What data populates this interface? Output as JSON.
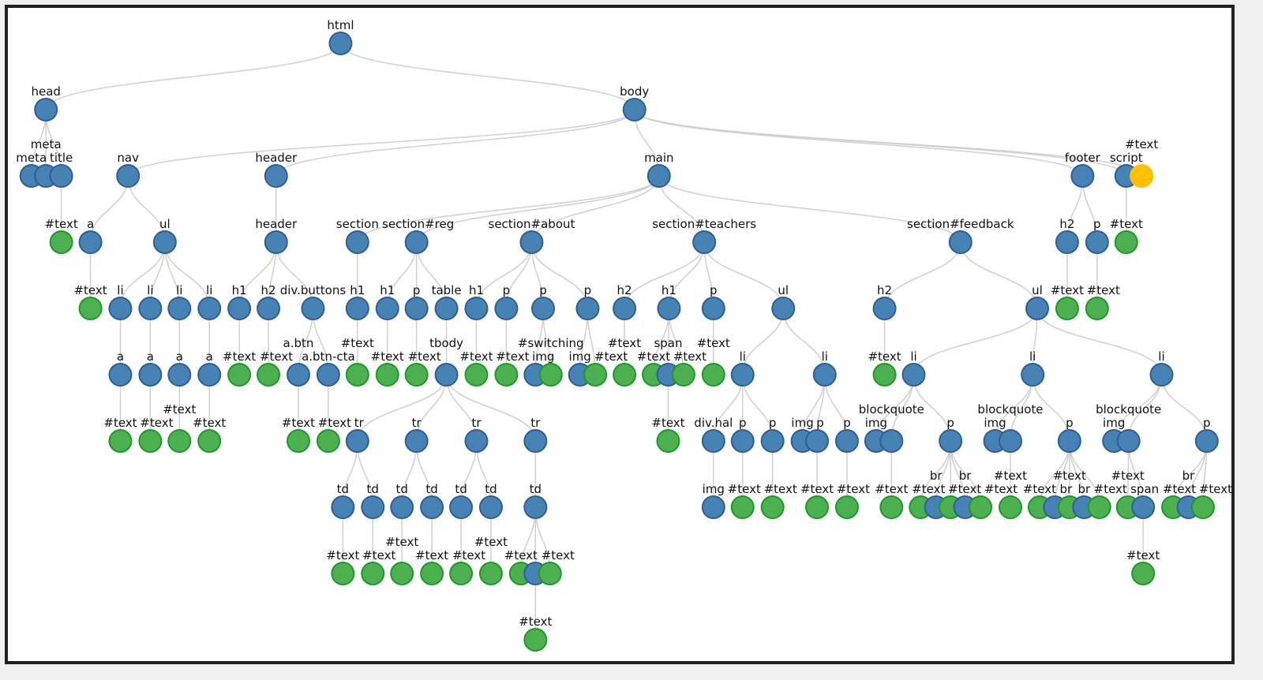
{
  "colors": {
    "element": "#4682b4",
    "element_stroke": "#2f5f94",
    "text": "#4caf50",
    "text_stroke": "#1e9a28",
    "highlight": "#ffc107",
    "link": "#cfcfcf"
  },
  "nodes": [
    {
      "label": "html",
      "kind": "element",
      "parent": null
    },
    {
      "label": "head",
      "kind": "element",
      "parent": 0
    },
    {
      "label": "body",
      "kind": "element",
      "parent": 0
    },
    {
      "label": "meta",
      "kind": "element",
      "parent": 1
    },
    {
      "label": "meta",
      "kind": "element",
      "parent": 1
    },
    {
      "label": "title",
      "kind": "element",
      "parent": 1
    },
    {
      "label": "#text",
      "kind": "text",
      "parent": 5
    },
    {
      "label": "nav",
      "kind": "element",
      "parent": 2
    },
    {
      "label": "header",
      "kind": "element",
      "parent": 2
    },
    {
      "label": "main",
      "kind": "element",
      "parent": 2
    },
    {
      "label": "footer",
      "kind": "element",
      "parent": 2
    },
    {
      "label": "script",
      "kind": "element",
      "parent": 2
    },
    {
      "label": "#text",
      "kind": "highlight",
      "parent": 2
    },
    {
      "label": "#text",
      "kind": "text",
      "parent": 11
    },
    {
      "label": "a",
      "kind": "element",
      "parent": 7
    },
    {
      "label": "ul",
      "kind": "element",
      "parent": 7
    },
    {
      "label": "#text",
      "kind": "text",
      "parent": 14
    },
    {
      "label": "li",
      "kind": "element",
      "parent": 15
    },
    {
      "label": "li",
      "kind": "element",
      "parent": 15
    },
    {
      "label": "li",
      "kind": "element",
      "parent": 15
    },
    {
      "label": "li",
      "kind": "element",
      "parent": 15
    },
    {
      "label": "a",
      "kind": "element",
      "parent": 17
    },
    {
      "label": "a",
      "kind": "element",
      "parent": 18
    },
    {
      "label": "a",
      "kind": "element",
      "parent": 19
    },
    {
      "label": "a",
      "kind": "element",
      "parent": 20
    },
    {
      "label": "#text",
      "kind": "text",
      "parent": 21
    },
    {
      "label": "#text",
      "kind": "text",
      "parent": 22
    },
    {
      "label": "#text",
      "kind": "text",
      "parent": 23
    },
    {
      "label": "#text",
      "kind": "text",
      "parent": 24
    },
    {
      "label": "header",
      "kind": "element",
      "parent": 8
    },
    {
      "label": "h1",
      "kind": "element",
      "parent": 29
    },
    {
      "label": "h2",
      "kind": "element",
      "parent": 29
    },
    {
      "label": "div.buttons",
      "kind": "element",
      "parent": 29
    },
    {
      "label": "#text",
      "kind": "text",
      "parent": 30
    },
    {
      "label": "#text",
      "kind": "text",
      "parent": 31
    },
    {
      "label": "a.btn",
      "kind": "element",
      "parent": 32
    },
    {
      "label": "a.btn-cta",
      "kind": "element",
      "parent": 32
    },
    {
      "label": "#text",
      "kind": "text",
      "parent": 35
    },
    {
      "label": "#text",
      "kind": "text",
      "parent": 36
    },
    {
      "label": "section",
      "kind": "element",
      "parent": 9
    },
    {
      "label": "section#reg",
      "kind": "element",
      "parent": 9
    },
    {
      "label": "section#about",
      "kind": "element",
      "parent": 9
    },
    {
      "label": "section#teachers",
      "kind": "element",
      "parent": 9
    },
    {
      "label": "section#feedback",
      "kind": "element",
      "parent": 9
    },
    {
      "label": "h1",
      "kind": "element",
      "parent": 39
    },
    {
      "label": "#text",
      "kind": "text",
      "parent": 44
    },
    {
      "label": "h1",
      "kind": "element",
      "parent": 40
    },
    {
      "label": "p",
      "kind": "element",
      "parent": 40
    },
    {
      "label": "table",
      "kind": "element",
      "parent": 40
    },
    {
      "label": "#text",
      "kind": "text",
      "parent": 46
    },
    {
      "label": "#text",
      "kind": "text",
      "parent": 47
    },
    {
      "label": "tbody",
      "kind": "element",
      "parent": 48
    },
    {
      "label": "tr",
      "kind": "element",
      "parent": 51
    },
    {
      "label": "tr",
      "kind": "element",
      "parent": 51
    },
    {
      "label": "tr",
      "kind": "element",
      "parent": 51
    },
    {
      "label": "tr",
      "kind": "element",
      "parent": 51
    },
    {
      "label": "td",
      "kind": "element",
      "parent": 52
    },
    {
      "label": "td",
      "kind": "element",
      "parent": 52
    },
    {
      "label": "td",
      "kind": "element",
      "parent": 53
    },
    {
      "label": "td",
      "kind": "element",
      "parent": 53
    },
    {
      "label": "td",
      "kind": "element",
      "parent": 54
    },
    {
      "label": "td",
      "kind": "element",
      "parent": 54
    },
    {
      "label": "td",
      "kind": "element",
      "parent": 55
    },
    {
      "label": "#text",
      "kind": "text",
      "parent": 56
    },
    {
      "label": "#text",
      "kind": "text",
      "parent": 57
    },
    {
      "label": "#text",
      "kind": "text",
      "parent": 58
    },
    {
      "label": "#text",
      "kind": "text",
      "parent": 59
    },
    {
      "label": "#text",
      "kind": "text",
      "parent": 60
    },
    {
      "label": "#text",
      "kind": "text",
      "parent": 61
    },
    {
      "label": "#text",
      "kind": "text",
      "parent": 62
    },
    {
      "label": "",
      "kind": "element",
      "parent": 62
    },
    {
      "label": "#text",
      "kind": "text",
      "parent": 62
    },
    {
      "label": "#text",
      "kind": "text",
      "parent": 70
    },
    {
      "label": "h1",
      "kind": "element",
      "parent": 41
    },
    {
      "label": "p",
      "kind": "element",
      "parent": 41
    },
    {
      "label": "p",
      "kind": "element",
      "parent": 41
    },
    {
      "label": "p",
      "kind": "element",
      "parent": 41
    },
    {
      "label": "#text",
      "kind": "text",
      "parent": 73
    },
    {
      "label": "#text",
      "kind": "text",
      "parent": 74
    },
    {
      "label": "img",
      "kind": "element",
      "parent": 75
    },
    {
      "label": "#switching",
      "kind": "text",
      "parent": 75
    },
    {
      "label": "img",
      "kind": "element",
      "parent": 76
    },
    {
      "label": "#text",
      "kind": "text",
      "parent": 76
    },
    {
      "label": "h2",
      "kind": "element",
      "parent": 42
    },
    {
      "label": "h1",
      "kind": "element",
      "parent": 42
    },
    {
      "label": "p",
      "kind": "element",
      "parent": 42
    },
    {
      "label": "ul",
      "kind": "element",
      "parent": 42
    },
    {
      "label": "#text",
      "kind": "text",
      "parent": 83
    },
    {
      "label": "#text",
      "kind": "text",
      "parent": 84
    },
    {
      "label": "span",
      "kind": "element",
      "parent": 84
    },
    {
      "label": "#text",
      "kind": "text",
      "parent": 84
    },
    {
      "label": "#text",
      "kind": "text",
      "parent": 89
    },
    {
      "label": "#text",
      "kind": "text",
      "parent": 85
    },
    {
      "label": "li",
      "kind": "element",
      "parent": 86
    },
    {
      "label": "li",
      "kind": "element",
      "parent": 86
    },
    {
      "label": "div.hal",
      "kind": "element",
      "parent": 93
    },
    {
      "label": "p",
      "kind": "element",
      "parent": 93
    },
    {
      "label": "p",
      "kind": "element",
      "parent": 93
    },
    {
      "label": "img",
      "kind": "element",
      "parent": 95
    },
    {
      "label": "#text",
      "kind": "text",
      "parent": 96
    },
    {
      "label": "#text",
      "kind": "text",
      "parent": 97
    },
    {
      "label": "img",
      "kind": "element",
      "parent": 94
    },
    {
      "label": "p",
      "kind": "element",
      "parent": 94
    },
    {
      "label": "p",
      "kind": "element",
      "parent": 94
    },
    {
      "label": "#text",
      "kind": "text",
      "parent": 102
    },
    {
      "label": "#text",
      "kind": "text",
      "parent": 103
    },
    {
      "label": "h2",
      "kind": "element",
      "parent": 43
    },
    {
      "label": "ul",
      "kind": "element",
      "parent": 43
    },
    {
      "label": "#text",
      "kind": "text",
      "parent": 106
    },
    {
      "label": "li",
      "kind": "element",
      "parent": 107
    },
    {
      "label": "li",
      "kind": "element",
      "parent": 107
    },
    {
      "label": "li",
      "kind": "element",
      "parent": 107
    },
    {
      "label": "img",
      "kind": "element",
      "parent": 109
    },
    {
      "label": "blockquote",
      "kind": "element",
      "parent": 109
    },
    {
      "label": "p",
      "kind": "element",
      "parent": 109
    },
    {
      "label": "#text",
      "kind": "text",
      "parent": 113
    },
    {
      "label": "#text",
      "kind": "text",
      "parent": 114
    },
    {
      "label": "br",
      "kind": "element",
      "parent": 114
    },
    {
      "label": "#text",
      "kind": "text",
      "parent": 114
    },
    {
      "label": "br",
      "kind": "element",
      "parent": 114
    },
    {
      "label": "#text",
      "kind": "text",
      "parent": 114
    },
    {
      "label": "img",
      "kind": "element",
      "parent": 110
    },
    {
      "label": "blockquote",
      "kind": "element",
      "parent": 110
    },
    {
      "label": "p",
      "kind": "element",
      "parent": 110
    },
    {
      "label": "#text",
      "kind": "text",
      "parent": 122
    },
    {
      "label": "#text",
      "kind": "text",
      "parent": 123
    },
    {
      "label": "br",
      "kind": "element",
      "parent": 123
    },
    {
      "label": "#text",
      "kind": "text",
      "parent": 123
    },
    {
      "label": "br",
      "kind": "element",
      "parent": 123
    },
    {
      "label": "#text",
      "kind": "text",
      "parent": 123
    },
    {
      "label": "img",
      "kind": "element",
      "parent": 111
    },
    {
      "label": "blockquote",
      "kind": "element",
      "parent": 111
    },
    {
      "label": "p",
      "kind": "element",
      "parent": 111
    },
    {
      "label": "#text",
      "kind": "text",
      "parent": 131
    },
    {
      "label": "span",
      "kind": "element",
      "parent": 131
    },
    {
      "label": "#text",
      "kind": "text",
      "parent": 134
    },
    {
      "label": "#text",
      "kind": "text",
      "parent": 132
    },
    {
      "label": "br",
      "kind": "element",
      "parent": 132
    },
    {
      "label": "#text",
      "kind": "text",
      "parent": 132
    },
    {
      "label": "h2",
      "kind": "element",
      "parent": 10
    },
    {
      "label": "p",
      "kind": "element",
      "parent": 10
    },
    {
      "label": "#text",
      "kind": "text",
      "parent": 139
    },
    {
      "label": "#text",
      "kind": "text",
      "parent": 140
    }
  ]
}
